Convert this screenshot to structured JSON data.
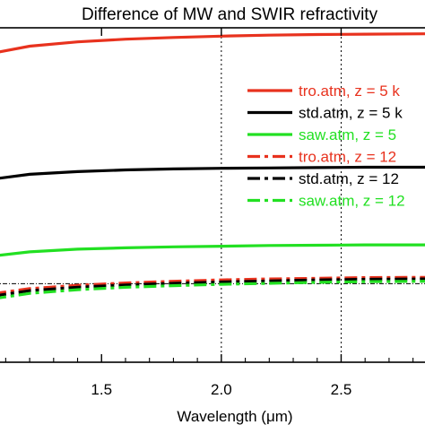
{
  "chart_data": {
    "type": "line",
    "title": "Difference of MW and SWIR refractivity",
    "xlabel": "Wavelength (μm)",
    "xlim": [
      1.05,
      2.85
    ],
    "ylim": [
      0,
      1
    ],
    "xticks": [
      1.5,
      2.0,
      2.5
    ],
    "xtick_labels": [
      "1.5",
      "2.0",
      "2.5"
    ],
    "vlines": [
      2.0,
      2.5
    ],
    "hline": 0.235,
    "grid": false,
    "legend_position": "upper-right",
    "series": [
      {
        "name": "tro.atm, z = 5 k",
        "color": "#e8321e",
        "dash": "solid",
        "x": [
          1.05,
          1.2,
          1.4,
          1.6,
          1.8,
          2.0,
          2.2,
          2.4,
          2.6,
          2.85
        ],
        "y": [
          0.925,
          0.945,
          0.958,
          0.966,
          0.971,
          0.975,
          0.978,
          0.98,
          0.981,
          0.982
        ]
      },
      {
        "name": "std.atm, z = 5 k",
        "color": "#000000",
        "dash": "solid",
        "x": [
          1.05,
          1.2,
          1.4,
          1.6,
          1.8,
          2.0,
          2.2,
          2.4,
          2.6,
          2.85
        ],
        "y": [
          0.548,
          0.562,
          0.57,
          0.575,
          0.578,
          0.58,
          0.581,
          0.582,
          0.583,
          0.583
        ]
      },
      {
        "name": "saw.atm, z = 5",
        "color": "#22e022",
        "dash": "solid",
        "x": [
          1.05,
          1.2,
          1.4,
          1.6,
          1.8,
          2.0,
          2.2,
          2.4,
          2.6,
          2.85
        ],
        "y": [
          0.318,
          0.33,
          0.338,
          0.342,
          0.345,
          0.347,
          0.349,
          0.35,
          0.351,
          0.351
        ]
      },
      {
        "name": "tro.atm, z = 12",
        "color": "#e8321e",
        "dash": "dashdot",
        "x": [
          1.05,
          1.2,
          1.4,
          1.6,
          1.8,
          2.0,
          2.2,
          2.4,
          2.6,
          2.85
        ],
        "y": [
          0.205,
          0.22,
          0.23,
          0.237,
          0.242,
          0.246,
          0.249,
          0.251,
          0.253,
          0.254
        ]
      },
      {
        "name": "std.atm, z = 12",
        "color": "#000000",
        "dash": "dashdot",
        "x": [
          1.05,
          1.2,
          1.4,
          1.6,
          1.8,
          2.0,
          2.2,
          2.4,
          2.6,
          2.85
        ],
        "y": [
          0.198,
          0.214,
          0.224,
          0.231,
          0.236,
          0.24,
          0.243,
          0.246,
          0.248,
          0.249
        ]
      },
      {
        "name": "saw.atm, z = 12",
        "color": "#22e022",
        "dash": "dashdot",
        "x": [
          1.05,
          1.2,
          1.4,
          1.6,
          1.8,
          2.0,
          2.2,
          2.4,
          2.6,
          2.85
        ],
        "y": [
          0.19,
          0.206,
          0.217,
          0.224,
          0.229,
          0.233,
          0.236,
          0.239,
          0.241,
          0.242
        ]
      }
    ]
  }
}
